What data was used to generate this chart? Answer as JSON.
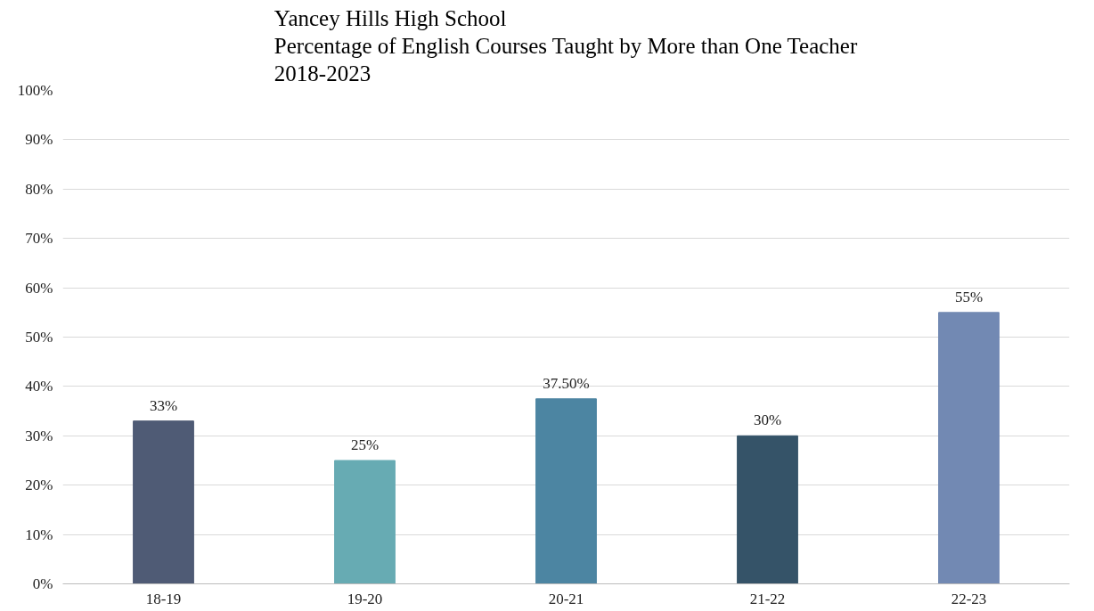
{
  "chart_data": {
    "type": "bar",
    "title": "Yancey Hills High School\nPercentage of English Courses Taught by More than One Teacher\n2018-2023",
    "categories": [
      "18-19",
      "19-20",
      "20-21",
      "21-22",
      "22-23"
    ],
    "values": [
      33,
      25,
      37.5,
      30,
      55
    ],
    "colors": [
      "#4f5b75",
      "#67abb3",
      "#4c85a2",
      "#355368",
      "#7289b3"
    ],
    "value_labels": [
      "33%",
      "25%",
      "37.50%",
      "30%",
      "55%"
    ],
    "ylim": [
      0,
      100
    ],
    "yticks": [
      {
        "value": 0,
        "label": "0%"
      },
      {
        "value": 10,
        "label": "10%"
      },
      {
        "value": 20,
        "label": "20%"
      },
      {
        "value": 30,
        "label": "30%"
      },
      {
        "value": 40,
        "label": "40%"
      },
      {
        "value": 50,
        "label": "50%"
      },
      {
        "value": 60,
        "label": "60%"
      },
      {
        "value": 70,
        "label": "70%"
      },
      {
        "value": 80,
        "label": "80%"
      },
      {
        "value": 90,
        "label": "90%"
      },
      {
        "value": 100,
        "label": "100%"
      }
    ],
    "grid": "y"
  }
}
